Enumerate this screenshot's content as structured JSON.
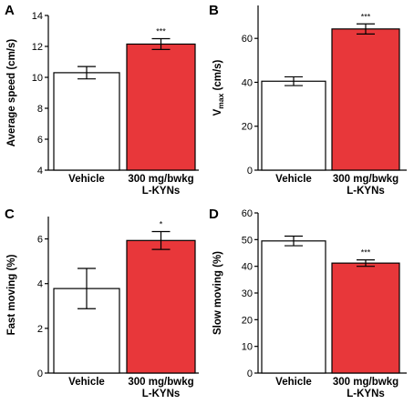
{
  "colors": {
    "vehicle": "#ffffff",
    "treatment": "#e8373a",
    "stroke": "#000000"
  },
  "chart_data": [
    {
      "panel": "A",
      "type": "bar",
      "categories": [
        "Vehicle",
        "300 mg/bwkg\nL-KYNs"
      ],
      "values": [
        10.3,
        12.15
      ],
      "errors": [
        0.4,
        0.35
      ],
      "significance": [
        "",
        "***"
      ],
      "ylabel": "Average speed (cm/s)",
      "ylabel_sub": "",
      "ylim": [
        4,
        14
      ],
      "yticks": [
        4,
        6,
        8,
        10,
        12,
        14
      ]
    },
    {
      "panel": "B",
      "type": "bar",
      "categories": [
        "Vehicle",
        "300 mg/bwkg\nL-KYNs"
      ],
      "values": [
        40.5,
        64.3
      ],
      "errors": [
        2.0,
        2.3
      ],
      "significance": [
        "",
        "***"
      ],
      "ylabel": "V",
      "ylabel_sub": "max",
      "ylabel_suffix": " (cm/s)",
      "ylim": [
        0,
        75
      ],
      "yticks": [
        0,
        20,
        40,
        60
      ]
    },
    {
      "panel": "C",
      "type": "bar",
      "categories": [
        "Vehicle",
        "300 mg/bwkg\nL-KYNs"
      ],
      "values": [
        3.78,
        5.93
      ],
      "errors": [
        0.9,
        0.4
      ],
      "significance": [
        "",
        "*"
      ],
      "ylabel": "Fast moving (%)",
      "ylabel_sub": "",
      "ylim": [
        0,
        7
      ],
      "yticks": [
        0,
        2,
        4,
        6
      ]
    },
    {
      "panel": "D",
      "type": "bar",
      "categories": [
        "Vehicle",
        "300 mg/bwkg\nL-KYNs"
      ],
      "values": [
        49.5,
        41.2
      ],
      "errors": [
        1.8,
        1.2
      ],
      "significance": [
        "",
        "***"
      ],
      "ylabel": "Slow moving (%)",
      "ylabel_sub": "",
      "ylim": [
        0,
        60
      ],
      "yticks": [
        0,
        10,
        20,
        30,
        40,
        50,
        60
      ]
    }
  ]
}
